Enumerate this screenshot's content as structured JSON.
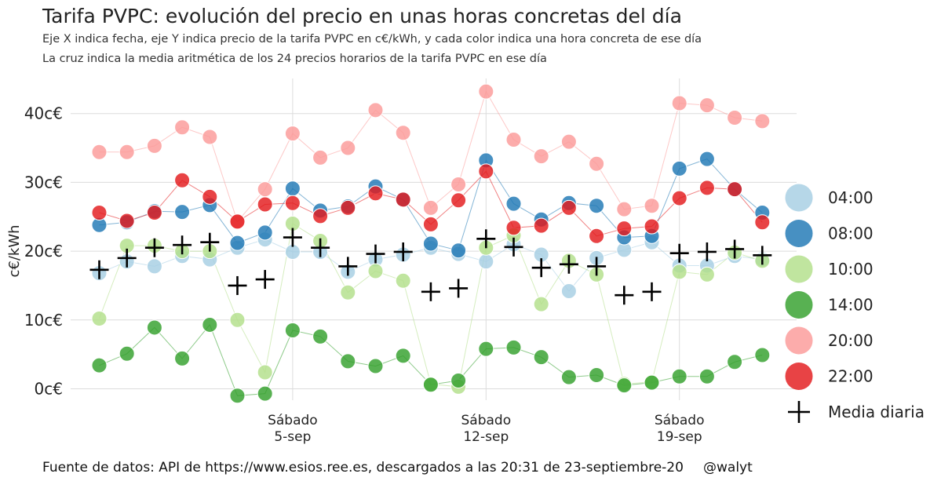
{
  "chart_data": {
    "type": "scatter",
    "title": "Tarifa PVPC: evolución del precio en unas horas concretas del día",
    "subtitles": [
      "Eje X indica fecha, eje Y indica precio de la tarifa PVPC en c€/kWh, y cada color indica una hora concreta de ese día",
      "La cruz indica la media aritmética de los 24 precios horarios de la tarifa PVPC en ese día"
    ],
    "ylabel": "c€/kWh",
    "xlabel": "",
    "caption_left": "Fuente de datos: API de https://www.esios.ree.es, descargados a las 20:31 de 23-septiembre-20",
    "caption_right": "@walyt",
    "x_dates": [
      "2020-08-29",
      "2020-08-30",
      "2020-08-31",
      "2020-09-01",
      "2020-09-02",
      "2020-09-03",
      "2020-09-04",
      "2020-09-05",
      "2020-09-06",
      "2020-09-07",
      "2020-09-08",
      "2020-09-09",
      "2020-09-10",
      "2020-09-11",
      "2020-09-12",
      "2020-09-13",
      "2020-09-14",
      "2020-09-15",
      "2020-09-16",
      "2020-09-17",
      "2020-09-18",
      "2020-09-19",
      "2020-09-20",
      "2020-09-21",
      "2020-09-22",
      "2020-09-23"
    ],
    "x_ticks": [
      {
        "date": "2020-09-05",
        "line1": "Sábado",
        "line2": "5-sep"
      },
      {
        "date": "2020-09-12",
        "line1": "Sábado",
        "line2": "12-sep"
      },
      {
        "date": "2020-09-19",
        "line1": "Sábado",
        "line2": "19-sep"
      }
    ],
    "y_ticks": [
      {
        "value": 0,
        "label": "0c€"
      },
      {
        "value": 10,
        "label": "10c€"
      },
      {
        "value": 20,
        "label": "20c€"
      },
      {
        "value": 30,
        "label": "30c€"
      },
      {
        "value": 40,
        "label": "40c€"
      }
    ],
    "ylim": [
      -2,
      45
    ],
    "grid": true,
    "legend_position": "right",
    "series": [
      {
        "name": "04:00",
        "color": "#a6cee3",
        "values": [
          16.8,
          18.5,
          17.8,
          19.3,
          18.8,
          20.5,
          21.7,
          19.9,
          19.9,
          17.0,
          18.8,
          19.5,
          20.5,
          19.6,
          18.5,
          21.0,
          19.5,
          14.2,
          19.0,
          20.2,
          21.3,
          17.9,
          17.9,
          19.3,
          18.8,
          null
        ]
      },
      {
        "name": "08:00",
        "color": "#1f78b4",
        "values": [
          23.8,
          24.2,
          25.8,
          25.7,
          26.7,
          21.2,
          22.7,
          29.1,
          25.9,
          26.5,
          29.4,
          27.5,
          21.1,
          20.1,
          33.2,
          26.9,
          24.6,
          27.0,
          26.6,
          22.0,
          22.2,
          32.0,
          33.4,
          29.0,
          25.6,
          null
        ]
      },
      {
        "name": "10:00",
        "color": "#b2df8a",
        "values": [
          10.2,
          20.8,
          20.8,
          20.0,
          20.0,
          10.0,
          2.4,
          24.0,
          21.5,
          14.0,
          17.1,
          15.7,
          0.7,
          0.3,
          20.5,
          22.3,
          12.3,
          18.6,
          16.6,
          0.7,
          1.0,
          17.0,
          16.6,
          19.8,
          18.6,
          null
        ]
      },
      {
        "name": "14:00",
        "color": "#33a02c",
        "values": [
          3.4,
          5.1,
          8.9,
          4.4,
          9.3,
          -1.0,
          -0.7,
          8.5,
          7.6,
          4.0,
          3.3,
          4.8,
          0.6,
          1.2,
          5.8,
          6.0,
          4.6,
          1.7,
          2.0,
          0.5,
          0.9,
          1.8,
          1.8,
          3.9,
          4.9,
          null
        ]
      },
      {
        "name": "20:00",
        "color": "#fb9a99",
        "values": [
          34.4,
          34.4,
          35.3,
          38.0,
          36.6,
          24.3,
          29.0,
          37.1,
          33.6,
          35.0,
          40.5,
          37.2,
          26.3,
          29.7,
          43.2,
          36.2,
          33.8,
          35.9,
          32.7,
          26.1,
          26.6,
          41.5,
          41.2,
          39.4,
          38.9,
          null
        ]
      },
      {
        "name": "22:00",
        "color": "#e31a1c",
        "values": [
          25.6,
          24.4,
          25.6,
          30.3,
          27.9,
          24.3,
          26.8,
          27.0,
          25.1,
          26.3,
          28.4,
          27.5,
          23.9,
          27.4,
          31.6,
          23.4,
          23.7,
          26.3,
          22.2,
          23.3,
          23.6,
          27.7,
          29.2,
          29.0,
          24.2,
          null
        ]
      }
    ],
    "mean_series": {
      "name": "Media diaria",
      "color": "#000000",
      "values": [
        17.3,
        19.0,
        20.5,
        20.9,
        21.3,
        15.0,
        15.9,
        22.0,
        20.5,
        17.8,
        19.6,
        19.9,
        14.1,
        14.6,
        21.8,
        20.6,
        17.6,
        18.1,
        17.8,
        13.6,
        14.1,
        19.7,
        19.9,
        20.3,
        19.4,
        null
      ]
    }
  }
}
